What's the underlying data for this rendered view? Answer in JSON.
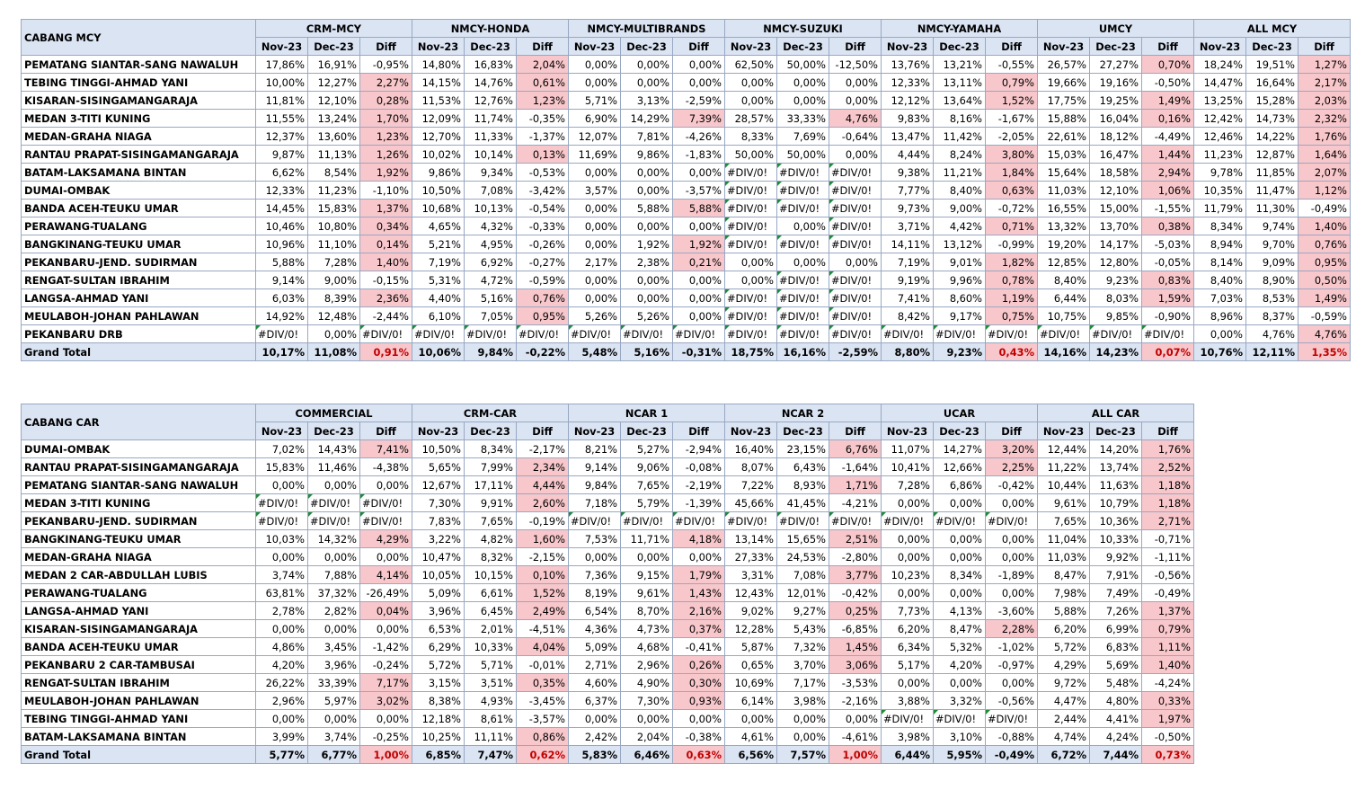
{
  "mcy_table": {
    "title": "CABANG MCY",
    "sub_headers": [
      "Nov-23",
      "Dec-23",
      "Diff"
    ],
    "groups": [
      "CRM-MCY",
      "NMCY-HONDA",
      "NMCY-MULTIBRANDS",
      "NMCY-SUZUKI",
      "NMCY-YAMAHA",
      "UMCY",
      "ALL MCY"
    ],
    "rows": [
      {
        "name": "PEMATANG SIANTAR-SANG NAWALUH",
        "cells": [
          "17,86%",
          "16,91%",
          "-0,95%",
          "14,80%",
          "16,83%",
          "2,04%",
          "0,00%",
          "0,00%",
          "0,00%",
          "62,50%",
          "50,00%",
          "-12,50%",
          "13,76%",
          "13,21%",
          "-0,55%",
          "26,57%",
          "27,27%",
          "0,70%",
          "18,24%",
          "19,51%",
          "1,27%"
        ]
      },
      {
        "name": "TEBING TINGGI-AHMAD YANI",
        "cells": [
          "10,00%",
          "12,27%",
          "2,27%",
          "14,15%",
          "14,76%",
          "0,61%",
          "0,00%",
          "0,00%",
          "0,00%",
          "0,00%",
          "0,00%",
          "0,00%",
          "12,33%",
          "13,11%",
          "0,79%",
          "19,66%",
          "19,16%",
          "-0,50%",
          "14,47%",
          "16,64%",
          "2,17%"
        ]
      },
      {
        "name": "KISARAN-SISINGAMANGARAJA",
        "cells": [
          "11,81%",
          "12,10%",
          "0,28%",
          "11,53%",
          "12,76%",
          "1,23%",
          "5,71%",
          "3,13%",
          "-2,59%",
          "0,00%",
          "0,00%",
          "0,00%",
          "12,12%",
          "13,64%",
          "1,52%",
          "17,75%",
          "19,25%",
          "1,49%",
          "13,25%",
          "15,28%",
          "2,03%"
        ]
      },
      {
        "name": "MEDAN 3-TITI KUNING",
        "cells": [
          "11,55%",
          "13,24%",
          "1,70%",
          "12,09%",
          "11,74%",
          "-0,35%",
          "6,90%",
          "14,29%",
          "7,39%",
          "28,57%",
          "33,33%",
          "4,76%",
          "9,83%",
          "8,16%",
          "-1,67%",
          "15,88%",
          "16,04%",
          "0,16%",
          "12,42%",
          "14,73%",
          "2,32%"
        ]
      },
      {
        "name": "MEDAN-GRAHA NIAGA",
        "cells": [
          "12,37%",
          "13,60%",
          "1,23%",
          "12,70%",
          "11,33%",
          "-1,37%",
          "12,07%",
          "7,81%",
          "-4,26%",
          "8,33%",
          "7,69%",
          "-0,64%",
          "13,47%",
          "11,42%",
          "-2,05%",
          "22,61%",
          "18,12%",
          "-4,49%",
          "12,46%",
          "14,22%",
          "1,76%"
        ]
      },
      {
        "name": "RANTAU PRAPAT-SISINGAMANGARAJA",
        "cells": [
          "9,87%",
          "11,13%",
          "1,26%",
          "10,02%",
          "10,14%",
          "0,13%",
          "11,69%",
          "9,86%",
          "-1,83%",
          "50,00%",
          "50,00%",
          "0,00%",
          "4,44%",
          "8,24%",
          "3,80%",
          "15,03%",
          "16,47%",
          "1,44%",
          "11,23%",
          "12,87%",
          "1,64%"
        ]
      },
      {
        "name": "BATAM-LAKSAMANA BINTAN",
        "cells": [
          "6,62%",
          "8,54%",
          "1,92%",
          "9,86%",
          "9,34%",
          "-0,53%",
          "0,00%",
          "0,00%",
          "0,00%",
          "#DIV/0!",
          "#DIV/0!",
          "#DIV/0!",
          "9,38%",
          "11,21%",
          "1,84%",
          "15,64%",
          "18,58%",
          "2,94%",
          "9,78%",
          "11,85%",
          "2,07%"
        ]
      },
      {
        "name": "DUMAI-OMBAK",
        "cells": [
          "12,33%",
          "11,23%",
          "-1,10%",
          "10,50%",
          "7,08%",
          "-3,42%",
          "3,57%",
          "0,00%",
          "-3,57%",
          "#DIV/0!",
          "#DIV/0!",
          "#DIV/0!",
          "7,77%",
          "8,40%",
          "0,63%",
          "11,03%",
          "12,10%",
          "1,06%",
          "10,35%",
          "11,47%",
          "1,12%"
        ]
      },
      {
        "name": "BANDA ACEH-TEUKU UMAR",
        "cells": [
          "14,45%",
          "15,83%",
          "1,37%",
          "10,68%",
          "10,13%",
          "-0,54%",
          "0,00%",
          "5,88%",
          "5,88%",
          "#DIV/0!",
          "#DIV/0!",
          "#DIV/0!",
          "9,73%",
          "9,00%",
          "-0,72%",
          "16,55%",
          "15,00%",
          "-1,55%",
          "11,79%",
          "11,30%",
          "-0,49%"
        ]
      },
      {
        "name": "PERAWANG-TUALANG",
        "cells": [
          "10,46%",
          "10,80%",
          "0,34%",
          "4,65%",
          "4,32%",
          "-0,33%",
          "0,00%",
          "0,00%",
          "0,00%",
          "#DIV/0!",
          "0,00%",
          "#DIV/0!",
          "3,71%",
          "4,42%",
          "0,71%",
          "13,32%",
          "13,70%",
          "0,38%",
          "8,34%",
          "9,74%",
          "1,40%"
        ]
      },
      {
        "name": "BANGKINANG-TEUKU UMAR",
        "cells": [
          "10,96%",
          "11,10%",
          "0,14%",
          "5,21%",
          "4,95%",
          "-0,26%",
          "0,00%",
          "1,92%",
          "1,92%",
          "#DIV/0!",
          "#DIV/0!",
          "#DIV/0!",
          "14,11%",
          "13,12%",
          "-0,99%",
          "19,20%",
          "14,17%",
          "-5,03%",
          "8,94%",
          "9,70%",
          "0,76%"
        ]
      },
      {
        "name": "PEKANBARU-JEND. SUDIRMAN",
        "cells": [
          "5,88%",
          "7,28%",
          "1,40%",
          "7,19%",
          "6,92%",
          "-0,27%",
          "2,17%",
          "2,38%",
          "0,21%",
          "0,00%",
          "0,00%",
          "0,00%",
          "7,19%",
          "9,01%",
          "1,82%",
          "12,85%",
          "12,80%",
          "-0,05%",
          "8,14%",
          "9,09%",
          "0,95%"
        ]
      },
      {
        "name": "RENGAT-SULTAN IBRAHIM",
        "cells": [
          "9,14%",
          "9,00%",
          "-0,15%",
          "5,31%",
          "4,72%",
          "-0,59%",
          "0,00%",
          "0,00%",
          "0,00%",
          "0,00%",
          "#DIV/0!",
          "#DIV/0!",
          "9,19%",
          "9,96%",
          "0,78%",
          "8,40%",
          "9,23%",
          "0,83%",
          "8,40%",
          "8,90%",
          "0,50%"
        ]
      },
      {
        "name": "LANGSA-AHMAD YANI",
        "cells": [
          "6,03%",
          "8,39%",
          "2,36%",
          "4,40%",
          "5,16%",
          "0,76%",
          "0,00%",
          "0,00%",
          "0,00%",
          "#DIV/0!",
          "#DIV/0!",
          "#DIV/0!",
          "7,41%",
          "8,60%",
          "1,19%",
          "6,44%",
          "8,03%",
          "1,59%",
          "7,03%",
          "8,53%",
          "1,49%"
        ]
      },
      {
        "name": "MEULABOH-JOHAN PAHLAWAN",
        "cells": [
          "14,92%",
          "12,48%",
          "-2,44%",
          "6,10%",
          "7,05%",
          "0,95%",
          "5,26%",
          "5,26%",
          "0,00%",
          "#DIV/0!",
          "#DIV/0!",
          "#DIV/0!",
          "8,42%",
          "9,17%",
          "0,75%",
          "10,75%",
          "9,85%",
          "-0,90%",
          "8,96%",
          "8,37%",
          "-0,59%"
        ]
      },
      {
        "name": "PEKANBARU DRB",
        "cells": [
          "#DIV/0!",
          "0,00%",
          "#DIV/0!",
          "#DIV/0!",
          "#DIV/0!",
          "#DIV/0!",
          "#DIV/0!",
          "#DIV/0!",
          "#DIV/0!",
          "#DIV/0!",
          "#DIV/0!",
          "#DIV/0!",
          "#DIV/0!",
          "#DIV/0!",
          "#DIV/0!",
          "#DIV/0!",
          "#DIV/0!",
          "#DIV/0!",
          "0,00%",
          "4,76%",
          "4,76%"
        ]
      }
    ],
    "total": {
      "name": "Grand Total",
      "cells": [
        "10,17%",
        "11,08%",
        "0,91%",
        "10,06%",
        "9,84%",
        "-0,22%",
        "5,48%",
        "5,16%",
        "-0,31%",
        "18,75%",
        "16,16%",
        "-2,59%",
        "8,80%",
        "9,23%",
        "0,43%",
        "14,16%",
        "14,23%",
        "0,07%",
        "10,76%",
        "12,11%",
        "1,35%"
      ]
    }
  },
  "car_table": {
    "title": "CABANG CAR",
    "sub_headers": [
      "Nov-23",
      "Dec-23",
      "Diff"
    ],
    "groups": [
      "COMMERCIAL",
      "CRM-CAR",
      "NCAR 1",
      "NCAR 2",
      "UCAR",
      "ALL CAR"
    ],
    "rows": [
      {
        "name": "DUMAI-OMBAK",
        "cells": [
          "7,02%",
          "14,43%",
          "7,41%",
          "10,50%",
          "8,34%",
          "-2,17%",
          "8,21%",
          "5,27%",
          "-2,94%",
          "16,40%",
          "23,15%",
          "6,76%",
          "11,07%",
          "14,27%",
          "3,20%",
          "12,44%",
          "14,20%",
          "1,76%"
        ]
      },
      {
        "name": "RANTAU PRAPAT-SISINGAMANGARAJA",
        "cells": [
          "15,83%",
          "11,46%",
          "-4,38%",
          "5,65%",
          "7,99%",
          "2,34%",
          "9,14%",
          "9,06%",
          "-0,08%",
          "8,07%",
          "6,43%",
          "-1,64%",
          "10,41%",
          "12,66%",
          "2,25%",
          "11,22%",
          "13,74%",
          "2,52%"
        ]
      },
      {
        "name": "PEMATANG SIANTAR-SANG NAWALUH",
        "cells": [
          "0,00%",
          "0,00%",
          "0,00%",
          "12,67%",
          "17,11%",
          "4,44%",
          "9,84%",
          "7,65%",
          "-2,19%",
          "7,22%",
          "8,93%",
          "1,71%",
          "7,28%",
          "6,86%",
          "-0,42%",
          "10,44%",
          "11,63%",
          "1,18%"
        ]
      },
      {
        "name": "MEDAN 3-TITI KUNING",
        "cells": [
          "#DIV/0!",
          "#DIV/0!",
          "#DIV/0!",
          "7,30%",
          "9,91%",
          "2,60%",
          "7,18%",
          "5,79%",
          "-1,39%",
          "45,66%",
          "41,45%",
          "-4,21%",
          "0,00%",
          "0,00%",
          "0,00%",
          "9,61%",
          "10,79%",
          "1,18%"
        ]
      },
      {
        "name": "PEKANBARU-JEND. SUDIRMAN",
        "cells": [
          "#DIV/0!",
          "#DIV/0!",
          "#DIV/0!",
          "7,83%",
          "7,65%",
          "-0,19%",
          "#DIV/0!",
          "#DIV/0!",
          "#DIV/0!",
          "#DIV/0!",
          "#DIV/0!",
          "#DIV/0!",
          "#DIV/0!",
          "#DIV/0!",
          "#DIV/0!",
          "7,65%",
          "10,36%",
          "2,71%"
        ]
      },
      {
        "name": "BANGKINANG-TEUKU UMAR",
        "cells": [
          "10,03%",
          "14,32%",
          "4,29%",
          "3,22%",
          "4,82%",
          "1,60%",
          "7,53%",
          "11,71%",
          "4,18%",
          "13,14%",
          "15,65%",
          "2,51%",
          "0,00%",
          "0,00%",
          "0,00%",
          "11,04%",
          "10,33%",
          "-0,71%"
        ]
      },
      {
        "name": "MEDAN-GRAHA NIAGA",
        "cells": [
          "0,00%",
          "0,00%",
          "0,00%",
          "10,47%",
          "8,32%",
          "-2,15%",
          "0,00%",
          "0,00%",
          "0,00%",
          "27,33%",
          "24,53%",
          "-2,80%",
          "0,00%",
          "0,00%",
          "0,00%",
          "11,03%",
          "9,92%",
          "-1,11%"
        ]
      },
      {
        "name": "MEDAN 2 CAR-ABDULLAH LUBIS",
        "cells": [
          "3,74%",
          "7,88%",
          "4,14%",
          "10,05%",
          "10,15%",
          "0,10%",
          "7,36%",
          "9,15%",
          "1,79%",
          "3,31%",
          "7,08%",
          "3,77%",
          "10,23%",
          "8,34%",
          "-1,89%",
          "8,47%",
          "7,91%",
          "-0,56%"
        ]
      },
      {
        "name": "PERAWANG-TUALANG",
        "cells": [
          "63,81%",
          "37,32%",
          "-26,49%",
          "5,09%",
          "6,61%",
          "1,52%",
          "8,19%",
          "9,61%",
          "1,43%",
          "12,43%",
          "12,01%",
          "-0,42%",
          "0,00%",
          "0,00%",
          "0,00%",
          "7,98%",
          "7,49%",
          "-0,49%"
        ]
      },
      {
        "name": "LANGSA-AHMAD YANI",
        "cells": [
          "2,78%",
          "2,82%",
          "0,04%",
          "3,96%",
          "6,45%",
          "2,49%",
          "6,54%",
          "8,70%",
          "2,16%",
          "9,02%",
          "9,27%",
          "0,25%",
          "7,73%",
          "4,13%",
          "-3,60%",
          "5,88%",
          "7,26%",
          "1,37%"
        ]
      },
      {
        "name": "KISARAN-SISINGAMANGARAJA",
        "cells": [
          "0,00%",
          "0,00%",
          "0,00%",
          "6,53%",
          "2,01%",
          "-4,51%",
          "4,36%",
          "4,73%",
          "0,37%",
          "12,28%",
          "5,43%",
          "-6,85%",
          "6,20%",
          "8,47%",
          "2,28%",
          "6,20%",
          "6,99%",
          "0,79%"
        ]
      },
      {
        "name": "BANDA ACEH-TEUKU UMAR",
        "cells": [
          "4,86%",
          "3,45%",
          "-1,42%",
          "6,29%",
          "10,33%",
          "4,04%",
          "5,09%",
          "4,68%",
          "-0,41%",
          "5,87%",
          "7,32%",
          "1,45%",
          "6,34%",
          "5,32%",
          "-1,02%",
          "5,72%",
          "6,83%",
          "1,11%"
        ]
      },
      {
        "name": "PEKANBARU 2 CAR-TAMBUSAI",
        "cells": [
          "4,20%",
          "3,96%",
          "-0,24%",
          "5,72%",
          "5,71%",
          "-0,01%",
          "2,71%",
          "2,96%",
          "0,26%",
          "0,65%",
          "3,70%",
          "3,06%",
          "5,17%",
          "4,20%",
          "-0,97%",
          "4,29%",
          "5,69%",
          "1,40%"
        ]
      },
      {
        "name": "RENGAT-SULTAN IBRAHIM",
        "cells": [
          "26,22%",
          "33,39%",
          "7,17%",
          "3,15%",
          "3,51%",
          "0,35%",
          "4,60%",
          "4,90%",
          "0,30%",
          "10,69%",
          "7,17%",
          "-3,53%",
          "0,00%",
          "0,00%",
          "0,00%",
          "9,72%",
          "5,48%",
          "-4,24%"
        ]
      },
      {
        "name": "MEULABOH-JOHAN PAHLAWAN",
        "cells": [
          "2,96%",
          "5,97%",
          "3,02%",
          "8,38%",
          "4,93%",
          "-3,45%",
          "6,37%",
          "7,30%",
          "0,93%",
          "6,14%",
          "3,98%",
          "-2,16%",
          "3,88%",
          "3,32%",
          "-0,56%",
          "4,47%",
          "4,80%",
          "0,33%"
        ]
      },
      {
        "name": "TEBING TINGGI-AHMAD YANI",
        "cells": [
          "0,00%",
          "0,00%",
          "0,00%",
          "12,18%",
          "8,61%",
          "-3,57%",
          "0,00%",
          "0,00%",
          "0,00%",
          "0,00%",
          "0,00%",
          "0,00%",
          "#DIV/0!",
          "#DIV/0!",
          "#DIV/0!",
          "2,44%",
          "4,41%",
          "1,97%"
        ]
      },
      {
        "name": "BATAM-LAKSAMANA BINTAN",
        "cells": [
          "3,99%",
          "3,74%",
          "-0,25%",
          "10,25%",
          "11,11%",
          "0,86%",
          "2,42%",
          "2,04%",
          "-0,38%",
          "4,61%",
          "0,00%",
          "-4,61%",
          "3,98%",
          "3,10%",
          "-0,88%",
          "4,74%",
          "4,24%",
          "-0,50%"
        ]
      }
    ],
    "total": {
      "name": "Grand Total",
      "cells": [
        "5,77%",
        "6,77%",
        "1,00%",
        "6,85%",
        "7,47%",
        "0,62%",
        "5,83%",
        "6,46%",
        "0,63%",
        "6,56%",
        "7,57%",
        "1,00%",
        "6,44%",
        "5,95%",
        "-0,49%",
        "6,72%",
        "7,44%",
        "0,73%"
      ]
    }
  },
  "colors": {
    "header_fill": "#dbe4f3",
    "grid_border": "#98a8c2",
    "positive_diff_fill": "#f8c7cb",
    "total_positive_text": "#c00000",
    "error_marker": "#1f8a3a"
  }
}
